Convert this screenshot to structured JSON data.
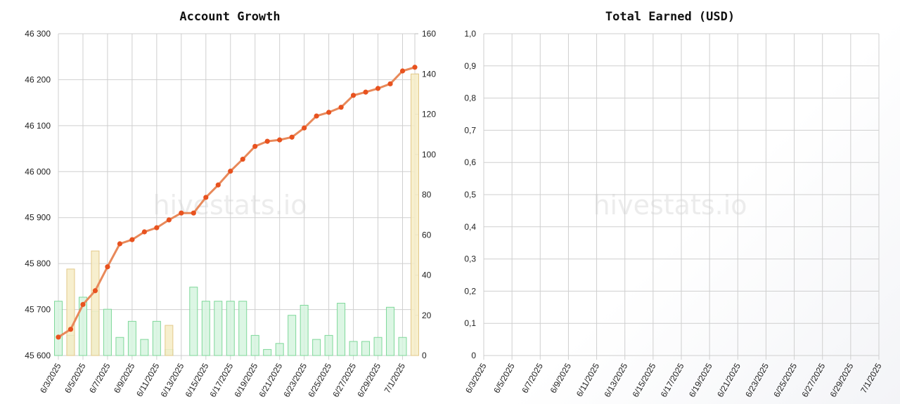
{
  "watermark": "hivestats.io",
  "chart_data": [
    {
      "type": "line+bar",
      "title": "Account Growth",
      "x": [
        "6/3/2025",
        "6/4/2025",
        "6/5/2025",
        "6/6/2025",
        "6/7/2025",
        "6/8/2025",
        "6/9/2025",
        "6/10/2025",
        "6/11/2025",
        "6/12/2025",
        "6/13/2025",
        "6/14/2025",
        "6/15/2025",
        "6/16/2025",
        "6/17/2025",
        "6/18/2025",
        "6/19/2025",
        "6/20/2025",
        "6/21/2025",
        "6/22/2025",
        "6/23/2025",
        "6/24/2025",
        "6/25/2025",
        "6/26/2025",
        "6/27/2025",
        "6/28/2025",
        "6/29/2025",
        "6/30/2025",
        "7/1/2025",
        "7/2/2025"
      ],
      "x_tick_labels": [
        "6/3/2025",
        "6/5/2025",
        "6/7/2025",
        "6/9/2025",
        "6/11/2025",
        "6/13/2025",
        "6/15/2025",
        "6/17/2025",
        "6/19/2025",
        "6/21/2025",
        "6/23/2025",
        "6/25/2025",
        "6/27/2025",
        "6/29/2025",
        "7/1/2025"
      ],
      "y_left_ticks": [
        "45 600",
        "45 700",
        "45 800",
        "45 900",
        "46 000",
        "46 100",
        "46 200",
        "46 300"
      ],
      "y_left_range": [
        45600,
        46300
      ],
      "y_right_ticks": [
        "0",
        "20",
        "40",
        "60",
        "80",
        "100",
        "120",
        "140",
        "160"
      ],
      "y_right_range": [
        0,
        160
      ],
      "grid": true,
      "series": [
        {
          "role": "line",
          "axis": "left",
          "color": "#e8895a",
          "marker_color": "#e8521f",
          "values": [
            45640,
            45657,
            45711,
            45741,
            45793,
            45843,
            45852,
            45869,
            45878,
            45895,
            45910,
            45910,
            45944,
            45971,
            46001,
            46027,
            46055,
            46066,
            46069,
            46075,
            46095,
            46121,
            46129,
            46140,
            46166,
            46173,
            46181,
            46191,
            46219,
            46227
          ]
        },
        {
          "role": "bar",
          "axis": "right",
          "color": "#d6f5df",
          "stroke": "#7fd89a",
          "values": [
            27,
            10,
            29,
            22,
            23,
            9,
            17,
            8,
            17,
            3,
            0,
            34,
            27,
            27,
            27,
            27,
            10,
            3,
            6,
            20,
            25,
            8,
            10,
            26,
            7,
            7,
            9,
            24,
            9,
            0
          ]
        },
        {
          "role": "bar",
          "axis": "right",
          "color": "#f6ecc6",
          "stroke": "#e3c98a",
          "values": [
            0,
            43,
            0,
            52,
            0,
            0,
            0,
            0,
            0,
            15,
            0,
            0,
            0,
            0,
            0,
            0,
            0,
            0,
            0,
            0,
            0,
            0,
            0,
            0,
            0,
            0,
            0,
            0,
            0,
            140
          ]
        }
      ]
    },
    {
      "type": "line",
      "title": "Total Earned (USD)",
      "x_tick_labels": [
        "6/3/2025",
        "6/5/2025",
        "6/7/2025",
        "6/9/2025",
        "6/11/2025",
        "6/13/2025",
        "6/15/2025",
        "6/17/2025",
        "6/19/2025",
        "6/21/2025",
        "6/23/2025",
        "6/25/2025",
        "6/27/2025",
        "6/29/2025",
        "7/1/2025"
      ],
      "y_ticks": [
        "0",
        "0,1",
        "0,2",
        "0,3",
        "0,4",
        "0,5",
        "0,6",
        "0,7",
        "0,8",
        "0,9",
        "1,0"
      ],
      "y_range": [
        0,
        1
      ],
      "grid": true,
      "series": []
    }
  ]
}
